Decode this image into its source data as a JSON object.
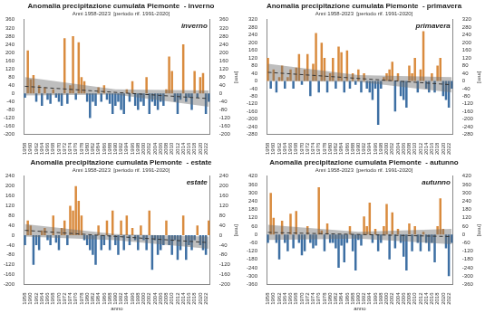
{
  "chart_data": [
    {
      "type": "bar",
      "title": "Anomalia precipitazione cumulata Piemonte  - inverno",
      "subtitle": "Anni 1958-2023  [periodo rif. 1991-2020]",
      "annotation": "inverno",
      "categories": [
        "1958",
        null,
        "1960",
        null,
        "1962",
        null,
        "1964",
        null,
        "1966",
        null,
        "1968",
        null,
        "1970",
        null,
        "1972",
        null,
        "1974",
        null,
        "1976",
        null,
        "1978",
        null,
        "1980",
        null,
        "1982",
        null,
        "1984",
        null,
        "1986",
        null,
        "1988",
        null,
        "1990",
        null,
        "1992",
        null,
        "1994",
        null,
        "1996",
        null,
        "1998",
        null,
        "2000",
        null,
        "2002",
        null,
        "2004",
        null,
        "2006",
        null,
        "2008",
        null,
        "2010",
        null,
        "2012",
        null,
        "2014",
        null,
        "2016",
        null,
        "2018",
        null,
        "2020",
        null,
        "2022",
        null
      ],
      "values": [
        -20,
        210,
        70,
        90,
        -40,
        40,
        -60,
        30,
        -30,
        -50,
        20,
        -20,
        -40,
        -60,
        270,
        -50,
        40,
        280,
        -30,
        250,
        80,
        60,
        -40,
        -120,
        -40,
        -60,
        30,
        -40,
        40,
        -30,
        -50,
        -100,
        -60,
        -40,
        -80,
        -100,
        20,
        -40,
        60,
        -60,
        -80,
        -40,
        -60,
        80,
        -100,
        -40,
        -60,
        -80,
        -40,
        -60,
        20,
        180,
        110,
        -40,
        -100,
        -30,
        240,
        -40,
        -20,
        -80,
        110,
        -20,
        80,
        100,
        -100,
        -40
      ],
      "colors": [
        "#3d6fa3",
        "#d98b3e",
        "#d98b3e",
        "#d98b3e",
        "#3d6fa3",
        "#d98b3e",
        "#3d6fa3",
        "#d98b3e",
        "#3d6fa3",
        "#3d6fa3",
        "#d98b3e",
        "#3d6fa3",
        "#3d6fa3",
        "#3d6fa3",
        "#d98b3e",
        "#3d6fa3",
        "#d98b3e",
        "#d98b3e",
        "#3d6fa3",
        "#d98b3e",
        "#d98b3e",
        "#d98b3e",
        "#3d6fa3",
        "#3d6fa3",
        "#3d6fa3",
        "#3d6fa3",
        "#d98b3e",
        "#3d6fa3",
        "#d98b3e",
        "#3d6fa3",
        "#3d6fa3",
        "#3d6fa3",
        "#3d6fa3",
        "#3d6fa3",
        "#3d6fa3",
        "#3d6fa3",
        "#d98b3e",
        "#3d6fa3",
        "#d98b3e",
        "#3d6fa3",
        "#3d6fa3",
        "#3d6fa3",
        "#3d6fa3",
        "#d98b3e",
        "#3d6fa3",
        "#3d6fa3",
        "#3d6fa3",
        "#3d6fa3",
        "#3d6fa3",
        "#3d6fa3",
        "#d98b3e",
        "#d98b3e",
        "#d98b3e",
        "#3d6fa3",
        "#3d6fa3",
        "#3d6fa3",
        "#d98b3e",
        "#3d6fa3",
        "#3d6fa3",
        "#3d6fa3",
        "#d98b3e",
        "#3d6fa3",
        "#d98b3e",
        "#d98b3e",
        "#3d6fa3",
        "#3d6fa3"
      ],
      "trend": [
        35,
        -25
      ],
      "band_upper": [
        80,
        20,
        15
      ],
      "band_lower": [
        -10,
        -5,
        -65
      ],
      "line_style": "dashed",
      "ylim": [
        -200,
        360
      ],
      "yticks": [
        -200,
        -160,
        -120,
        -80,
        -40,
        0,
        40,
        80,
        120,
        160,
        200,
        240,
        280,
        320,
        360
      ],
      "y2lim": [
        -200,
        360
      ],
      "y2ticks": [
        -200,
        -160,
        -120,
        -80,
        -40,
        0,
        40,
        80,
        120,
        160,
        200,
        240,
        280,
        320,
        360
      ],
      "y_label": "[mm]",
      "grid": false
    },
    {
      "type": "bar",
      "title": "Anomalia precipitazione cumulata Piemonte  - primavera",
      "subtitle": "Anni 1958-2023  [periodo rif. 1991-2020]",
      "annotation": "primavera",
      "categories": [
        "1958",
        null,
        "1960",
        null,
        "1962",
        null,
        "1964",
        null,
        "1966",
        null,
        "1968",
        null,
        "1970",
        null,
        "1972",
        null,
        "1974",
        null,
        "1976",
        null,
        "1978",
        null,
        "1980",
        null,
        "1982",
        null,
        "1984",
        null,
        "1986",
        null,
        "1988",
        null,
        "1990",
        null,
        "1992",
        null,
        "1994",
        null,
        "1996",
        null,
        "1998",
        null,
        "2000",
        null,
        "2002",
        null,
        "2004",
        null,
        "2006",
        null,
        "2008",
        null,
        "2010",
        null,
        "2012",
        null,
        "2014",
        null,
        "2016",
        null,
        "2018",
        null,
        "2020",
        null,
        "2022",
        null
      ],
      "values": [
        120,
        -40,
        60,
        -60,
        20,
        80,
        -40,
        20,
        60,
        -40,
        70,
        140,
        -20,
        60,
        140,
        -80,
        90,
        250,
        -60,
        200,
        120,
        -60,
        40,
        120,
        -40,
        180,
        150,
        -60,
        160,
        -40,
        40,
        -20,
        60,
        -60,
        40,
        -40,
        -60,
        -100,
        -40,
        -230,
        -40,
        20,
        40,
        60,
        100,
        -160,
        40,
        -80,
        -100,
        -140,
        80,
        40,
        120,
        -60,
        60,
        260,
        -40,
        -60,
        40,
        -60,
        80,
        120,
        -80,
        -100,
        -140,
        -40
      ],
      "colors": [
        "#d98b3e",
        "#3d6fa3",
        "#d98b3e",
        "#3d6fa3",
        "#d98b3e",
        "#d98b3e",
        "#3d6fa3",
        "#d98b3e",
        "#d98b3e",
        "#3d6fa3",
        "#d98b3e",
        "#d98b3e",
        "#3d6fa3",
        "#d98b3e",
        "#d98b3e",
        "#3d6fa3",
        "#d98b3e",
        "#d98b3e",
        "#3d6fa3",
        "#d98b3e",
        "#d98b3e",
        "#3d6fa3",
        "#d98b3e",
        "#d98b3e",
        "#3d6fa3",
        "#d98b3e",
        "#d98b3e",
        "#3d6fa3",
        "#d98b3e",
        "#3d6fa3",
        "#d98b3e",
        "#3d6fa3",
        "#d98b3e",
        "#3d6fa3",
        "#d98b3e",
        "#3d6fa3",
        "#3d6fa3",
        "#3d6fa3",
        "#3d6fa3",
        "#3d6fa3",
        "#3d6fa3",
        "#d98b3e",
        "#d98b3e",
        "#d98b3e",
        "#d98b3e",
        "#3d6fa3",
        "#d98b3e",
        "#3d6fa3",
        "#3d6fa3",
        "#3d6fa3",
        "#d98b3e",
        "#d98b3e",
        "#d98b3e",
        "#3d6fa3",
        "#d98b3e",
        "#d98b3e",
        "#3d6fa3",
        "#3d6fa3",
        "#d98b3e",
        "#3d6fa3",
        "#d98b3e",
        "#d98b3e",
        "#3d6fa3",
        "#3d6fa3",
        "#3d6fa3",
        "#3d6fa3"
      ],
      "trend": [
        45,
        -20
      ],
      "band_upper": [
        90,
        30,
        20
      ],
      "band_lower": [
        0,
        -5,
        -60
      ],
      "line_style": "dashed",
      "ylim": [
        -280,
        320
      ],
      "yticks": [
        -280,
        -240,
        -200,
        -160,
        -120,
        -80,
        -40,
        0,
        40,
        80,
        120,
        160,
        200,
        240,
        280,
        320
      ],
      "y2lim": [
        -280,
        320
      ],
      "y2ticks": [
        -280,
        -240,
        -200,
        -160,
        -120,
        -80,
        -40,
        0,
        40,
        80,
        120,
        160,
        200,
        240,
        280,
        320
      ],
      "y_label": "[mm]",
      "grid": false
    },
    {
      "type": "bar",
      "title": "Anomalia precipitazione cumulata Piemonte  - estate",
      "subtitle": "Anni 1958-2023  [periodo rif. 1991-2020]",
      "annotation": "estate",
      "categories": [
        "1958",
        null,
        "1960",
        null,
        "1962",
        null,
        "1964",
        null,
        "1966",
        null,
        "1968",
        null,
        "1970",
        null,
        "1972",
        null,
        "1974",
        null,
        "1976",
        null,
        "1978",
        null,
        "1980",
        null,
        "1982",
        null,
        "1984",
        null,
        "1986",
        null,
        "1988",
        null,
        "1990",
        null,
        "1992",
        null,
        "1994",
        null,
        "1996",
        null,
        "1998",
        null,
        "2000",
        null,
        "2002",
        null,
        "2004",
        null,
        "2006",
        null,
        "2008",
        null,
        "2010",
        null,
        "2012",
        null,
        "2014",
        null,
        "2016",
        null,
        "2018",
        null,
        "2020",
        null,
        "2022",
        null
      ],
      "values": [
        -40,
        60,
        40,
        -120,
        -40,
        -60,
        20,
        30,
        -20,
        -40,
        80,
        -30,
        -60,
        30,
        60,
        -40,
        120,
        100,
        200,
        140,
        80,
        -20,
        -40,
        -60,
        -80,
        -120,
        40,
        -60,
        -40,
        60,
        -60,
        100,
        -40,
        -80,
        60,
        -60,
        80,
        -40,
        30,
        -20,
        -60,
        40,
        -20,
        -60,
        100,
        -140,
        -20,
        -80,
        -60,
        -40,
        60,
        -40,
        -80,
        -20,
        -100,
        -60,
        80,
        -100,
        -40,
        -60,
        -20,
        40,
        -40,
        -60,
        -80,
        60
      ],
      "colors": [
        "#3d6fa3",
        "#d98b3e",
        "#d98b3e",
        "#3d6fa3",
        "#3d6fa3",
        "#3d6fa3",
        "#d98b3e",
        "#d98b3e",
        "#3d6fa3",
        "#3d6fa3",
        "#d98b3e",
        "#3d6fa3",
        "#3d6fa3",
        "#d98b3e",
        "#d98b3e",
        "#3d6fa3",
        "#d98b3e",
        "#d98b3e",
        "#d98b3e",
        "#d98b3e",
        "#d98b3e",
        "#3d6fa3",
        "#3d6fa3",
        "#3d6fa3",
        "#3d6fa3",
        "#3d6fa3",
        "#d98b3e",
        "#3d6fa3",
        "#3d6fa3",
        "#d98b3e",
        "#3d6fa3",
        "#d98b3e",
        "#3d6fa3",
        "#3d6fa3",
        "#d98b3e",
        "#3d6fa3",
        "#d98b3e",
        "#3d6fa3",
        "#d98b3e",
        "#3d6fa3",
        "#3d6fa3",
        "#d98b3e",
        "#3d6fa3",
        "#3d6fa3",
        "#d98b3e",
        "#3d6fa3",
        "#3d6fa3",
        "#3d6fa3",
        "#3d6fa3",
        "#3d6fa3",
        "#d98b3e",
        "#3d6fa3",
        "#3d6fa3",
        "#3d6fa3",
        "#3d6fa3",
        "#3d6fa3",
        "#d98b3e",
        "#3d6fa3",
        "#3d6fa3",
        "#3d6fa3",
        "#3d6fa3",
        "#d98b3e",
        "#3d6fa3",
        "#3d6fa3",
        "#3d6fa3",
        "#d98b3e"
      ],
      "trend": [
        20,
        -30
      ],
      "band_upper": [
        45,
        5,
        -5
      ],
      "band_lower": [
        -5,
        -20,
        -55
      ],
      "line_style": "dashed",
      "ylim": [
        -200,
        240
      ],
      "yticks": [
        -200,
        -160,
        -120,
        -80,
        -40,
        0,
        40,
        80,
        120,
        160,
        200,
        240
      ],
      "y2lim": [
        -200,
        240
      ],
      "y2ticks": [
        -200,
        -160,
        -120,
        -80,
        -40,
        0,
        40,
        80,
        120,
        160,
        200,
        240
      ],
      "y_label": "[mm]",
      "x_label": "anno",
      "grid": false
    },
    {
      "type": "bar",
      "title": "Anomalia precipitazione cumulata Piemonte  - autunno",
      "subtitle": "Anni 1958-2023  [periodo rif. 1991-2020]",
      "annotation": "autunno",
      "categories": [
        "1958",
        null,
        "1960",
        null,
        "1962",
        null,
        "1964",
        null,
        "1966",
        null,
        "1968",
        null,
        "1970",
        null,
        "1972",
        null,
        "1974",
        null,
        "1976",
        null,
        "1978",
        null,
        "1980",
        null,
        "1982",
        null,
        "1984",
        null,
        "1986",
        null,
        "1988",
        null,
        "1990",
        null,
        "1992",
        null,
        "1994",
        null,
        "1996",
        null,
        "1998",
        null,
        "2000",
        null,
        "2002",
        null,
        "2004",
        null,
        "2006",
        null,
        "2008",
        null,
        "2010",
        null,
        "2012",
        null,
        "2014",
        null,
        "2016",
        null,
        "2018",
        null,
        "2020",
        null,
        "2022",
        null
      ],
      "values": [
        -60,
        300,
        120,
        -60,
        -180,
        100,
        -60,
        -120,
        150,
        -100,
        170,
        -60,
        -150,
        -120,
        60,
        -60,
        -100,
        -80,
        340,
        30,
        -120,
        80,
        -60,
        -60,
        -100,
        -240,
        -80,
        -200,
        -60,
        60,
        -120,
        -260,
        -40,
        -80,
        130,
        60,
        230,
        -60,
        40,
        -120,
        -60,
        60,
        220,
        -180,
        160,
        -100,
        40,
        -60,
        -160,
        -260,
        80,
        -120,
        60,
        -60,
        -120,
        20,
        -60,
        -120,
        -60,
        -200,
        60,
        260,
        40,
        -100,
        -300,
        -60
      ],
      "colors": [
        "#3d6fa3",
        "#d98b3e",
        "#d98b3e",
        "#3d6fa3",
        "#3d6fa3",
        "#d98b3e",
        "#3d6fa3",
        "#3d6fa3",
        "#d98b3e",
        "#3d6fa3",
        "#d98b3e",
        "#3d6fa3",
        "#3d6fa3",
        "#3d6fa3",
        "#d98b3e",
        "#3d6fa3",
        "#3d6fa3",
        "#3d6fa3",
        "#d98b3e",
        "#d98b3e",
        "#3d6fa3",
        "#d98b3e",
        "#3d6fa3",
        "#3d6fa3",
        "#3d6fa3",
        "#3d6fa3",
        "#3d6fa3",
        "#3d6fa3",
        "#3d6fa3",
        "#d98b3e",
        "#3d6fa3",
        "#3d6fa3",
        "#3d6fa3",
        "#3d6fa3",
        "#d98b3e",
        "#d98b3e",
        "#d98b3e",
        "#3d6fa3",
        "#d98b3e",
        "#3d6fa3",
        "#3d6fa3",
        "#d98b3e",
        "#d98b3e",
        "#3d6fa3",
        "#d98b3e",
        "#3d6fa3",
        "#d98b3e",
        "#3d6fa3",
        "#3d6fa3",
        "#3d6fa3",
        "#d98b3e",
        "#3d6fa3",
        "#d98b3e",
        "#3d6fa3",
        "#3d6fa3",
        "#d98b3e",
        "#3d6fa3",
        "#3d6fa3",
        "#3d6fa3",
        "#3d6fa3",
        "#d98b3e",
        "#d98b3e",
        "#d98b3e",
        "#3d6fa3",
        "#3d6fa3",
        "#3d6fa3"
      ],
      "trend": [
        15,
        -15
      ],
      "band_upper": [
        70,
        20,
        40
      ],
      "band_lower": [
        -40,
        -30,
        -70
      ],
      "line_style": "dashed",
      "ylim": [
        -360,
        420
      ],
      "yticks": [
        -360,
        -300,
        -240,
        -180,
        -120,
        -60,
        0,
        60,
        120,
        180,
        240,
        300,
        360,
        420
      ],
      "y2lim": [
        -360,
        420
      ],
      "y2ticks": [
        -360,
        -300,
        -240,
        -180,
        -120,
        -60,
        0,
        60,
        120,
        180,
        240,
        300,
        360,
        420
      ],
      "y_label": "[mm]",
      "x_label": "anno",
      "grid": false
    }
  ]
}
